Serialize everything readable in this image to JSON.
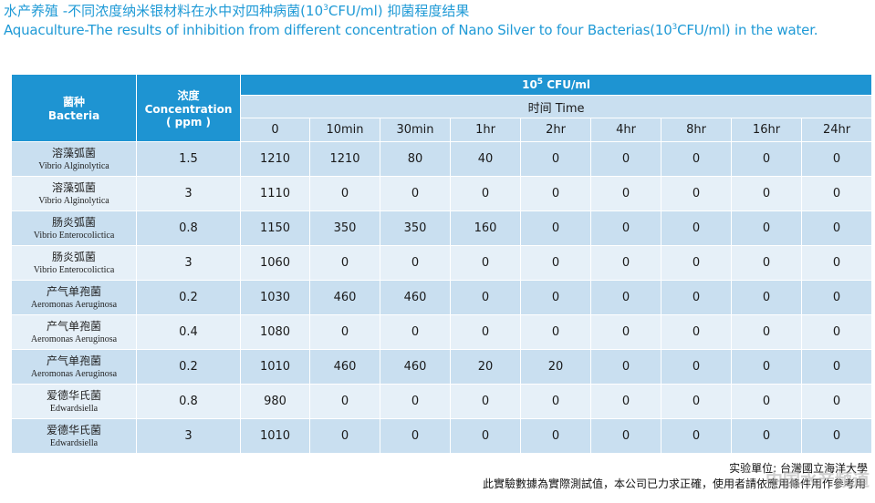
{
  "title": {
    "zh_prefix": "水产养殖 -不同浓度纳米银材料在水中对四种病菌(10",
    "zh_sup": "3",
    "zh_suffix": "CFU/ml) 抑菌程度结果",
    "en_prefix": "Aquaculture-The results of inhibition from different concentration of Nano Silver to four Bacterias(10",
    "en_sup": "3",
    "en_suffix": "CFU/ml) in the water."
  },
  "table": {
    "col_bacteria_zh": "菌种",
    "col_bacteria_en": "Bacteria",
    "col_conc_zh": "浓度",
    "col_conc_en": "Concentration",
    "col_conc_unit": "( ppm )",
    "unit_prefix": "10",
    "unit_sup": "5",
    "unit_suffix": " CFU/ml",
    "time_label": "时间 Time",
    "time_points": [
      "0",
      "10min",
      "30min",
      "1hr",
      "2hr",
      "4hr",
      "8hr",
      "16hr",
      "24hr"
    ],
    "rows": [
      {
        "name_zh": "溶藻弧菌",
        "name_en": "Vibrio Alginolytica",
        "conc": "1.5",
        "values": [
          "1210",
          "1210",
          "80",
          "40",
          "0",
          "0",
          "0",
          "0",
          "0"
        ]
      },
      {
        "name_zh": "溶藻弧菌",
        "name_en": "Vibrio Alginolytica",
        "conc": "3",
        "values": [
          "1110",
          "0",
          "0",
          "0",
          "0",
          "0",
          "0",
          "0",
          "0"
        ]
      },
      {
        "name_zh": "肠炎弧菌",
        "name_en": "Vibrio Enterocolictica",
        "conc": "0.8",
        "values": [
          "1150",
          "350",
          "350",
          "160",
          "0",
          "0",
          "0",
          "0",
          "0"
        ]
      },
      {
        "name_zh": "肠炎弧菌",
        "name_en": "Vibrio Enterocolictica",
        "conc": "3",
        "values": [
          "1060",
          "0",
          "0",
          "0",
          "0",
          "0",
          "0",
          "0",
          "0"
        ]
      },
      {
        "name_zh": "产气单孢菌",
        "name_en": "Aeromonas Aeruginosa",
        "conc": "0.2",
        "values": [
          "1030",
          "460",
          "460",
          "0",
          "0",
          "0",
          "0",
          "0",
          "0"
        ]
      },
      {
        "name_zh": "产气单孢菌",
        "name_en": "Aeromonas Aeruginosa",
        "conc": "0.4",
        "values": [
          "1080",
          "0",
          "0",
          "0",
          "0",
          "0",
          "0",
          "0",
          "0"
        ]
      },
      {
        "name_zh": "产气单孢菌",
        "name_en": "Aeromonas Aeruginosa",
        "conc": "0.2",
        "values": [
          "1010",
          "460",
          "460",
          "20",
          "20",
          "0",
          "0",
          "0",
          "0"
        ]
      },
      {
        "name_zh": "爱德华氏菌",
        "name_en": "Edwardsiella",
        "conc": "0.8",
        "values": [
          "980",
          "0",
          "0",
          "0",
          "0",
          "0",
          "0",
          "0",
          "0"
        ]
      },
      {
        "name_zh": "爱德华氏菌",
        "name_en": "Edwardsiella",
        "conc": "3",
        "values": [
          "1010",
          "0",
          "0",
          "0",
          "0",
          "0",
          "0",
          "0",
          "0"
        ]
      }
    ]
  },
  "footer": {
    "unit_label": "实验單位: 台灣國立海洋大學",
    "disclaimer": "此實驗數據為實際測試值，本公司已力求正確，使用者請依應用條件用作參考用"
  },
  "watermark": "中国水产频道",
  "colors": {
    "header_dark": "#1e94d2",
    "row_odd": "#c9dff0",
    "row_even": "#e6f0f8",
    "title": "#1f9ad6"
  }
}
